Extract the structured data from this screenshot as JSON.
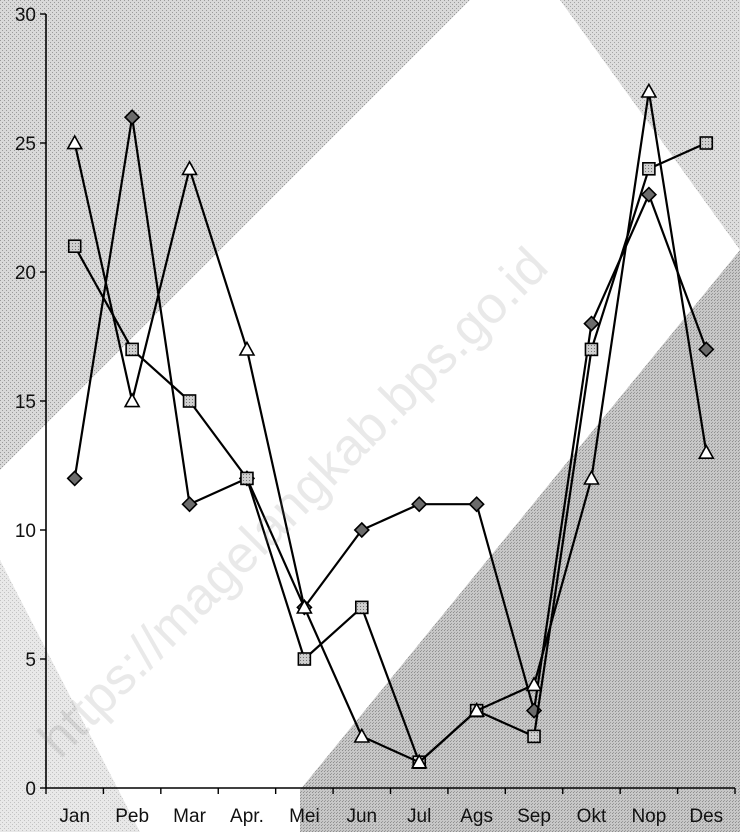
{
  "watermark_text": "https://magelangkab.bps.go.id",
  "chart_data": {
    "type": "line",
    "title": "",
    "xlabel": "",
    "ylabel": "",
    "categories": [
      "Jan",
      "Peb",
      "Mar",
      "Apr.",
      "Mei",
      "Jun",
      "Jul",
      "Ags",
      "Sep",
      "Okt",
      "Nop",
      "Des"
    ],
    "ylim": [
      0,
      30
    ],
    "yticks": [
      0,
      5,
      10,
      15,
      20,
      25,
      30
    ],
    "grid": false,
    "legend": "none",
    "series": [
      {
        "marker": "diamond",
        "values": [
          12,
          26,
          11,
          12,
          7,
          10,
          11,
          11,
          3,
          18,
          23,
          17
        ]
      },
      {
        "marker": "square",
        "values": [
          21,
          17,
          15,
          12,
          5,
          7,
          1,
          3,
          2,
          17,
          24,
          25
        ]
      },
      {
        "marker": "triangle",
        "values": [
          25,
          15,
          24,
          17,
          7,
          2,
          1,
          3,
          4,
          12,
          27,
          13
        ]
      }
    ]
  }
}
